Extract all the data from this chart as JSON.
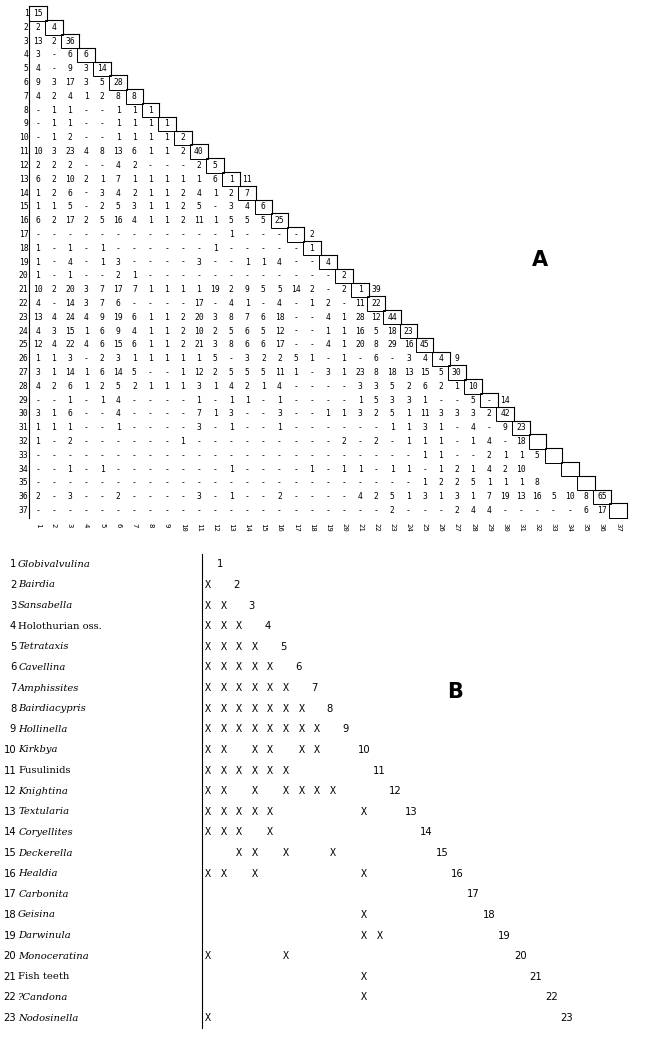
{
  "panel_A": {
    "rows": [
      {
        "num": 1,
        "data": [
          "15"
        ]
      },
      {
        "num": 2,
        "data": [
          "2",
          "4"
        ]
      },
      {
        "num": 3,
        "data": [
          "13",
          "2",
          "36"
        ]
      },
      {
        "num": 4,
        "data": [
          "3",
          "-",
          "6",
          "6"
        ]
      },
      {
        "num": 5,
        "data": [
          "4",
          "-",
          "9",
          "3",
          "14"
        ]
      },
      {
        "num": 6,
        "data": [
          "9",
          "3",
          "17",
          "3",
          "5",
          "28"
        ]
      },
      {
        "num": 7,
        "data": [
          "4",
          "2",
          "4",
          "1",
          "2",
          "8",
          "8"
        ]
      },
      {
        "num": 8,
        "data": [
          "-",
          "1",
          "1",
          "-",
          "-",
          "1",
          "1",
          "1"
        ]
      },
      {
        "num": 9,
        "data": [
          "-",
          "1",
          "1",
          "-",
          "-",
          "1",
          "1",
          "1",
          "1"
        ]
      },
      {
        "num": 10,
        "data": [
          "-",
          "1",
          "2",
          "-",
          "-",
          "1",
          "1",
          "1",
          "1",
          "2"
        ]
      },
      {
        "num": 11,
        "data": [
          "10",
          "3",
          "23",
          "4",
          "8",
          "13",
          "6",
          "1",
          "1",
          "2",
          "40"
        ]
      },
      {
        "num": 12,
        "data": [
          "2",
          "2",
          "2",
          "-",
          "-",
          "4",
          "2",
          "-",
          "-",
          "-",
          "2",
          "5"
        ]
      },
      {
        "num": 13,
        "data": [
          "6",
          "2",
          "10",
          "2",
          "1",
          "7",
          "1",
          "1",
          "1",
          "1",
          "1",
          "6",
          "1",
          "11"
        ]
      },
      {
        "num": 14,
        "data": [
          "1",
          "2",
          "6",
          "-",
          "3",
          "4",
          "2",
          "1",
          "1",
          "2",
          "4",
          "1",
          "2",
          "7"
        ]
      },
      {
        "num": 15,
        "data": [
          "1",
          "1",
          "5",
          "-",
          "2",
          "5",
          "3",
          "1",
          "1",
          "2",
          "5",
          "-",
          "3",
          "4",
          "6"
        ]
      },
      {
        "num": 16,
        "data": [
          "6",
          "2",
          "17",
          "2",
          "5",
          "16",
          "4",
          "1",
          "1",
          "2",
          "11",
          "1",
          "5",
          "5",
          "5",
          "25"
        ]
      },
      {
        "num": 17,
        "data": [
          "-",
          "-",
          "-",
          "-",
          "-",
          "-",
          "-",
          "-",
          "-",
          "-",
          "-",
          "-",
          "1",
          "-",
          "-",
          "-",
          "-",
          "2"
        ]
      },
      {
        "num": 18,
        "data": [
          "1",
          "-",
          "1",
          "-",
          "1",
          "-",
          "-",
          "-",
          "-",
          "-",
          "-",
          "1",
          "-",
          "-",
          "-",
          "-",
          "-",
          "1"
        ]
      },
      {
        "num": 19,
        "data": [
          "1",
          "-",
          "4",
          "-",
          "1",
          "3",
          "-",
          "-",
          "-",
          "-",
          "3",
          "-",
          "-",
          "1",
          "1",
          "4",
          "-",
          "-",
          "4"
        ]
      },
      {
        "num": 20,
        "data": [
          "1",
          "-",
          "1",
          "-",
          "-",
          "2",
          "1",
          "-",
          "-",
          "-",
          "-",
          "-",
          "-",
          "-",
          "-",
          "-",
          "-",
          "-",
          "-",
          "2"
        ]
      },
      {
        "num": 21,
        "data": [
          "10",
          "2",
          "20",
          "3",
          "7",
          "17",
          "7",
          "1",
          "1",
          "1",
          "1",
          "19",
          "2",
          "9",
          "5",
          "5",
          "14",
          "2",
          "-",
          "2",
          "1",
          "39"
        ]
      },
      {
        "num": 22,
        "data": [
          "4",
          "-",
          "14",
          "3",
          "7",
          "6",
          "-",
          "-",
          "-",
          "-",
          "17",
          "-",
          "4",
          "1",
          "-",
          "4",
          "-",
          "1",
          "2",
          "-",
          "11",
          "22"
        ]
      },
      {
        "num": 23,
        "data": [
          "13",
          "4",
          "24",
          "4",
          "9",
          "19",
          "6",
          "1",
          "1",
          "2",
          "20",
          "3",
          "8",
          "7",
          "6",
          "18",
          "-",
          "-",
          "4",
          "1",
          "28",
          "12",
          "44"
        ]
      },
      {
        "num": 24,
        "data": [
          "4",
          "3",
          "15",
          "1",
          "6",
          "9",
          "4",
          "1",
          "1",
          "2",
          "10",
          "2",
          "5",
          "6",
          "5",
          "12",
          "-",
          "-",
          "1",
          "1",
          "16",
          "5",
          "18",
          "23"
        ]
      },
      {
        "num": 25,
        "data": [
          "12",
          "4",
          "22",
          "4",
          "6",
          "15",
          "6",
          "1",
          "1",
          "2",
          "21",
          "3",
          "8",
          "6",
          "6",
          "17",
          "-",
          "-",
          "4",
          "1",
          "20",
          "8",
          "29",
          "16",
          "45"
        ]
      },
      {
        "num": 26,
        "data": [
          "1",
          "1",
          "3",
          "-",
          "2",
          "3",
          "1",
          "1",
          "1",
          "1",
          "1",
          "5",
          "-",
          "3",
          "2",
          "2",
          "5",
          "1",
          "-",
          "1",
          "-",
          "6",
          "-",
          "3",
          "4",
          "4",
          "9"
        ]
      },
      {
        "num": 27,
        "data": [
          "3",
          "1",
          "14",
          "1",
          "6",
          "14",
          "5",
          "-",
          "-",
          "1",
          "12",
          "2",
          "5",
          "5",
          "5",
          "11",
          "1",
          "-",
          "3",
          "1",
          "23",
          "8",
          "18",
          "13",
          "15",
          "5",
          "30"
        ]
      },
      {
        "num": 28,
        "data": [
          "4",
          "2",
          "6",
          "1",
          "2",
          "5",
          "2",
          "1",
          "1",
          "1",
          "3",
          "1",
          "4",
          "2",
          "1",
          "4",
          "-",
          "-",
          "-",
          "-",
          "3",
          "3",
          "5",
          "2",
          "6",
          "2",
          "1",
          "10"
        ]
      },
      {
        "num": 29,
        "data": [
          "-",
          "-",
          "1",
          "-",
          "1",
          "4",
          "-",
          "-",
          "-",
          "-",
          "1",
          "-",
          "1",
          "1",
          "-",
          "1",
          "-",
          "-",
          "-",
          "-",
          "1",
          "5",
          "3",
          "3",
          "1",
          "-",
          "-",
          "5",
          "-",
          "14"
        ]
      },
      {
        "num": 30,
        "data": [
          "3",
          "1",
          "6",
          "-",
          "-",
          "4",
          "-",
          "-",
          "-",
          "-",
          "7",
          "1",
          "3",
          "-",
          "-",
          "3",
          "-",
          "-",
          "1",
          "1",
          "3",
          "2",
          "5",
          "1",
          "11",
          "3",
          "3",
          "3",
          "2",
          "42"
        ]
      },
      {
        "num": 31,
        "data": [
          "1",
          "1",
          "1",
          "-",
          "-",
          "1",
          "-",
          "-",
          "-",
          "-",
          "3",
          "-",
          "1",
          "-",
          "-",
          "1",
          "-",
          "-",
          "-",
          "-",
          "-",
          "-",
          "1",
          "1",
          "3",
          "1",
          "-",
          "4",
          "-",
          "9",
          "23"
        ]
      },
      {
        "num": 32,
        "data": [
          "1",
          "-",
          "2",
          "-",
          "-",
          "-",
          "-",
          "-",
          "-",
          "1",
          "-",
          "-",
          "-",
          "-",
          "-",
          "-",
          "-",
          "-",
          "-",
          "2",
          "-",
          "2",
          "-",
          "1",
          "1",
          "1",
          "-",
          "1",
          "4",
          "-",
          "18"
        ]
      },
      {
        "num": 33,
        "data": [
          "-",
          "-",
          "-",
          "-",
          "-",
          "-",
          "-",
          "-",
          "-",
          "-",
          "-",
          "-",
          "-",
          "-",
          "-",
          "-",
          "-",
          "-",
          "-",
          "-",
          "-",
          "-",
          "-",
          "-",
          "1",
          "1",
          "-",
          "-",
          "2",
          "1",
          "1",
          "5"
        ]
      },
      {
        "num": 34,
        "data": [
          "-",
          "-",
          "1",
          "-",
          "1",
          "-",
          "-",
          "-",
          "-",
          "-",
          "-",
          "-",
          "1",
          "-",
          "-",
          "-",
          "-",
          "1",
          "-",
          "1",
          "1",
          "-",
          "1",
          "1",
          "-",
          "1",
          "2",
          "1",
          "4",
          "2",
          "10"
        ]
      },
      {
        "num": 35,
        "data": [
          "-",
          "-",
          "-",
          "-",
          "-",
          "-",
          "-",
          "-",
          "-",
          "-",
          "-",
          "-",
          "-",
          "-",
          "-",
          "-",
          "-",
          "-",
          "-",
          "-",
          "-",
          "-",
          "-",
          "-",
          "1",
          "2",
          "2",
          "5",
          "1",
          "1",
          "1",
          "8"
        ]
      },
      {
        "num": 36,
        "data": [
          "2",
          "-",
          "3",
          "-",
          "-",
          "2",
          "-",
          "-",
          "-",
          "-",
          "3",
          "-",
          "1",
          "-",
          "-",
          "2",
          "-",
          "-",
          "-",
          "-",
          "4",
          "2",
          "5",
          "1",
          "3",
          "1",
          "3",
          "1",
          "7",
          "19",
          "13",
          "16",
          "5",
          "10",
          "8",
          "65"
        ]
      },
      {
        "num": 37,
        "data": [
          "-",
          "-",
          "-",
          "-",
          "-",
          "-",
          "-",
          "-",
          "-",
          "-",
          "-",
          "-",
          "-",
          "-",
          "-",
          "-",
          "-",
          "-",
          "-",
          "-",
          "-",
          "-",
          "2",
          "-",
          "-",
          "-",
          "2",
          "4",
          "4",
          "-",
          "-",
          "-",
          "-",
          "-",
          "6",
          "17"
        ]
      }
    ]
  },
  "panel_B": {
    "species": [
      {
        "num": 1,
        "name": "Globivalvulina",
        "italic": true,
        "marker_cols": []
      },
      {
        "num": 2,
        "name": "Bairdia",
        "italic": true,
        "marker_cols": [
          1
        ]
      },
      {
        "num": 3,
        "name": "Sansabella",
        "italic": true,
        "marker_cols": [
          1,
          2
        ]
      },
      {
        "num": 4,
        "name": "Holothurian oss.",
        "italic": false,
        "marker_cols": [
          1,
          2,
          3
        ]
      },
      {
        "num": 5,
        "name": "Tetrataxis",
        "italic": true,
        "marker_cols": [
          1,
          2,
          3,
          4
        ]
      },
      {
        "num": 6,
        "name": "Cavellina",
        "italic": true,
        "marker_cols": [
          1,
          2,
          3,
          4,
          5
        ]
      },
      {
        "num": 7,
        "name": "Amphissites",
        "italic": true,
        "marker_cols": [
          1,
          2,
          3,
          4,
          5,
          6
        ]
      },
      {
        "num": 8,
        "name": "Bairdiacypris",
        "italic": true,
        "marker_cols": [
          1,
          2,
          3,
          4,
          5,
          6,
          7
        ]
      },
      {
        "num": 9,
        "name": "Hollinella",
        "italic": true,
        "marker_cols": [
          1,
          2,
          3,
          4,
          5,
          6,
          7,
          8
        ]
      },
      {
        "num": 10,
        "name": "Kirkbya",
        "italic": true,
        "marker_cols": [
          1,
          2,
          4,
          5,
          7,
          8
        ]
      },
      {
        "num": 11,
        "name": "Fusulinids",
        "italic": false,
        "marker_cols": [
          1,
          2,
          3,
          4,
          5,
          6
        ]
      },
      {
        "num": 12,
        "name": "Knightina",
        "italic": true,
        "marker_cols": [
          1,
          2,
          4,
          6,
          7,
          8,
          9
        ]
      },
      {
        "num": 13,
        "name": "Textularia",
        "italic": true,
        "marker_cols": [
          1,
          2,
          3,
          4,
          5,
          11
        ]
      },
      {
        "num": 14,
        "name": "Coryellites",
        "italic": true,
        "marker_cols": [
          1,
          2,
          3,
          5
        ]
      },
      {
        "num": 15,
        "name": "Deckerella",
        "italic": true,
        "marker_cols": [
          3,
          4,
          6,
          9
        ]
      },
      {
        "num": 16,
        "name": "Healdia",
        "italic": true,
        "marker_cols": [
          1,
          2,
          4,
          11
        ]
      },
      {
        "num": 17,
        "name": "Carbonita",
        "italic": true,
        "marker_cols": []
      },
      {
        "num": 18,
        "name": "Geisina",
        "italic": true,
        "marker_cols": [
          11
        ]
      },
      {
        "num": 19,
        "name": "Darwinula",
        "italic": true,
        "marker_cols": [
          11,
          12
        ]
      },
      {
        "num": 20,
        "name": "Monoceratina",
        "italic": true,
        "marker_cols": [
          1,
          6
        ]
      },
      {
        "num": 21,
        "name": "Fish teeth",
        "italic": false,
        "marker_cols": [
          11
        ]
      },
      {
        "num": 22,
        "name": "?Candona",
        "italic": true,
        "marker_cols": [
          11
        ]
      },
      {
        "num": 23,
        "name": "Nodosinella",
        "italic": true,
        "marker_cols": [
          1
        ]
      }
    ]
  }
}
